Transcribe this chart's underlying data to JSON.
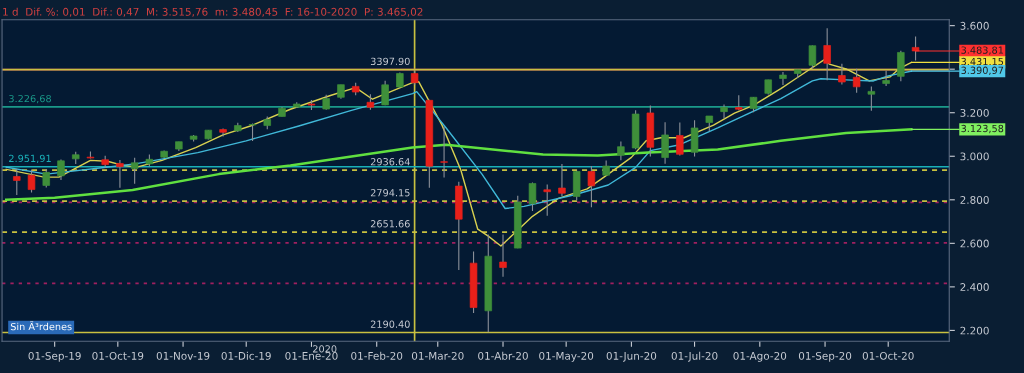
{
  "chart_data": {
    "type": "candlestick",
    "title": "1 d  Dif. %: 0,01  Dif.: 0,47  M: 3.515,76  m: 3.480,45  F: 16-10-2020  P: 3.465,02",
    "x": [
      "2019-08-14",
      "2019-08-21",
      "2019-08-28",
      "2019-09-04",
      "2019-09-11",
      "2019-09-18",
      "2019-09-25",
      "2019-10-02",
      "2019-10-09",
      "2019-10-16",
      "2019-10-23",
      "2019-10-30",
      "2019-11-06",
      "2019-11-13",
      "2019-11-20",
      "2019-11-27",
      "2019-12-04",
      "2019-12-11",
      "2019-12-18",
      "2019-12-25",
      "2020-01-01",
      "2020-01-08",
      "2020-01-15",
      "2020-01-22",
      "2020-01-29",
      "2020-02-05",
      "2020-02-12",
      "2020-02-19",
      "2020-02-26",
      "2020-03-04",
      "2020-03-11",
      "2020-03-18",
      "2020-03-25",
      "2020-04-01",
      "2020-04-08",
      "2020-04-15",
      "2020-04-22",
      "2020-04-29",
      "2020-05-06",
      "2020-05-13",
      "2020-05-20",
      "2020-05-27",
      "2020-06-03",
      "2020-06-10",
      "2020-06-17",
      "2020-06-24",
      "2020-07-01",
      "2020-07-08",
      "2020-07-15",
      "2020-07-22",
      "2020-07-29",
      "2020-08-05",
      "2020-08-12",
      "2020-08-19",
      "2020-08-26",
      "2020-09-02",
      "2020-09-09",
      "2020-09-16",
      "2020-09-23",
      "2020-09-30",
      "2020-10-07",
      "2020-10-14"
    ],
    "ohlc": [
      [
        2907,
        2943,
        2822,
        2889
      ],
      [
        2913,
        2939,
        2834,
        2847
      ],
      [
        2866,
        2940,
        2856,
        2926
      ],
      [
        2910,
        2985,
        2891,
        2979
      ],
      [
        2988,
        3021,
        2964,
        3007
      ],
      [
        2996,
        3022,
        2990,
        2992
      ],
      [
        2984,
        3002,
        2946,
        2962
      ],
      [
        2967,
        2983,
        2855,
        2952
      ],
      [
        2944,
        2993,
        2874,
        2970
      ],
      [
        2965,
        3008,
        2953,
        2986
      ],
      [
        2996,
        3027,
        2992,
        3023
      ],
      [
        3033,
        3067,
        3024,
        3067
      ],
      [
        3078,
        3098,
        3068,
        3093
      ],
      [
        3080,
        3121,
        3077,
        3120
      ],
      [
        3123,
        3127,
        3091,
        3110
      ],
      [
        3117,
        3154,
        3112,
        3141
      ],
      [
        3144,
        3150,
        3070,
        3146
      ],
      [
        3141,
        3183,
        3124,
        3169
      ],
      [
        3183,
        3226,
        3183,
        3221
      ],
      [
        3226,
        3248,
        3223,
        3240
      ],
      [
        3240,
        3259,
        3212,
        3235
      ],
      [
        3217,
        3282,
        3214,
        3265
      ],
      [
        3271,
        3329,
        3264,
        3329
      ],
      [
        3321,
        3338,
        3280,
        3295
      ],
      [
        3248,
        3285,
        3214,
        3225
      ],
      [
        3236,
        3347,
        3234,
        3328
      ],
      [
        3318,
        3385,
        3316,
        3380
      ],
      [
        3380,
        3393,
        3328,
        3338
      ],
      [
        3257,
        3260,
        2855,
        2954
      ],
      [
        2975,
        3137,
        2902,
        2972
      ],
      [
        2863,
        2883,
        2478,
        2711
      ],
      [
        2509,
        2562,
        2280,
        2305
      ],
      [
        2290,
        2641,
        2192,
        2541
      ],
      [
        2514,
        2641,
        2447,
        2489
      ],
      [
        2578,
        2819,
        2577,
        2790
      ],
      [
        2782,
        2879,
        2749,
        2875
      ],
      [
        2846,
        2870,
        2727,
        2837
      ],
      [
        2854,
        2965,
        2816,
        2830
      ],
      [
        2815,
        2933,
        2798,
        2930
      ],
      [
        2930,
        2955,
        2766,
        2864
      ],
      [
        2913,
        2980,
        2913,
        2955
      ],
      [
        3005,
        3068,
        2982,
        3044
      ],
      [
        3038,
        3211,
        3032,
        3194
      ],
      [
        3199,
        3233,
        2999,
        3041
      ],
      [
        2994,
        3156,
        2966,
        3098
      ],
      [
        3095,
        3155,
        3004,
        3009
      ],
      [
        3018,
        3165,
        2999,
        3130
      ],
      [
        3155,
        3185,
        3115,
        3185
      ],
      [
        3205,
        3238,
        3173,
        3225
      ],
      [
        3224,
        3280,
        3211,
        3216
      ],
      [
        3219,
        3272,
        3202,
        3271
      ],
      [
        3289,
        3352,
        3284,
        3351
      ],
      [
        3357,
        3387,
        3327,
        3373
      ],
      [
        3380,
        3399,
        3360,
        3397
      ],
      [
        3418,
        3509,
        3403,
        3508
      ],
      [
        3509,
        3588,
        3349,
        3427
      ],
      [
        3371,
        3425,
        3330,
        3341
      ],
      [
        3363,
        3402,
        3292,
        3319
      ],
      [
        3285,
        3320,
        3209,
        3298
      ],
      [
        3334,
        3393,
        3323,
        3348
      ],
      [
        3367,
        3485,
        3344,
        3477
      ],
      [
        3500,
        3550,
        3440,
        3483.81
      ]
    ],
    "series": [
      {
        "type": "line",
        "color": "#d8d050",
        "x": [
          "2019-08-09",
          "2019-08-27",
          "2019-09-03",
          "2019-09-18",
          "2019-09-26",
          "2019-10-03",
          "2019-10-10",
          "2019-10-22",
          "2019-11-07",
          "2019-11-20",
          "2019-12-03",
          "2019-12-22",
          "2020-01-10",
          "2020-01-22",
          "2020-01-30",
          "2020-02-18",
          "2020-02-21",
          "2020-03-03",
          "2020-03-12",
          "2020-03-20",
          "2020-03-25",
          "2020-03-31",
          "2020-04-15",
          "2020-04-27",
          "2020-05-11",
          "2020-05-21",
          "2020-06-01",
          "2020-06-08",
          "2020-06-15",
          "2020-06-26",
          "2020-07-10",
          "2020-07-20",
          "2020-07-29",
          "2020-08-11",
          "2020-08-18",
          "2020-09-01",
          "2020-09-03",
          "2020-09-11",
          "2020-09-22",
          "2020-10-02",
          "2020-10-06",
          "2020-10-12"
        ],
        "values": [
          2940,
          2904,
          2904,
          2981,
          2977,
          2959,
          2950,
          2981,
          3040,
          3098,
          3139,
          3216,
          3279,
          3315,
          3262,
          3338,
          3342,
          3143,
          2936,
          2665,
          2633,
          2588,
          2724,
          2805,
          2850,
          2918,
          2995,
          3071,
          3085,
          3085,
          3143,
          3198,
          3234,
          3311,
          3356,
          3446,
          3423,
          3401,
          3346,
          3365,
          3401,
          3431.15
        ]
      },
      {
        "type": "line",
        "color": "#40b8d8",
        "x": [
          "2019-08-09",
          "2019-08-28",
          "2019-10-08",
          "2019-11-08",
          "2019-12-01",
          "2019-12-26",
          "2020-01-20",
          "2020-02-18",
          "2020-02-20",
          "2020-03-05",
          "2020-03-22",
          "2020-04-02",
          "2020-04-11",
          "2020-05-05",
          "2020-05-21",
          "2020-06-03",
          "2020-06-10",
          "2020-06-24",
          "2020-07-12",
          "2020-07-25",
          "2020-08-11",
          "2020-08-26",
          "2020-08-30",
          "2020-09-11",
          "2020-09-24",
          "2020-10-01",
          "2020-10-12"
        ],
        "values": [
          2950,
          2918,
          2963,
          3017,
          3071,
          3139,
          3211,
          3288,
          3297,
          3130,
          2918,
          2760,
          2770,
          2823,
          2868,
          2949,
          3026,
          3053,
          3130,
          3189,
          3265,
          3346,
          3356,
          3351,
          3346,
          3369,
          3390.97
        ]
      },
      {
        "type": "line",
        "color": "#60e040",
        "x": [
          "2019-08-09",
          "2019-09-01",
          "2019-10-08",
          "2019-11-18",
          "2019-12-22",
          "2020-02-18",
          "2020-03-05",
          "2020-04-20",
          "2020-05-16",
          "2020-06-09",
          "2020-07-12",
          "2020-08-11",
          "2020-09-11",
          "2020-10-12"
        ],
        "values": [
          2800,
          2809,
          2845,
          2918,
          2958,
          3040,
          3053,
          3008,
          3004,
          3017,
          3031,
          3071,
          3107,
          3123.58
        ]
      }
    ],
    "ref_lines": [
      {
        "axis": "y",
        "value": 3397.9,
        "color": "#c0306a",
        "line_style": "solid"
      },
      {
        "axis": "y",
        "value": 3226.68,
        "label": "3.226,68",
        "color": "#1a9a8a",
        "line_style": "solid"
      },
      {
        "axis": "y",
        "value": 2951.91,
        "label": "2.951,91",
        "color": "#1ab0b8",
        "line_style": "solid"
      },
      {
        "axis": "y",
        "value": 2788,
        "color": "#a02060",
        "line_style": "dotted"
      },
      {
        "axis": "y",
        "value": 2602,
        "color": "#a02060",
        "line_style": "dotted"
      },
      {
        "axis": "y",
        "value": 2416,
        "color": "#a02060",
        "line_style": "dotted"
      },
      {
        "axis": "x",
        "value": "2020-02-19",
        "color": "#c8c040",
        "line_style": "solid"
      },
      {
        "axis": "y",
        "value": 3397.9,
        "label": "3397.90",
        "color": "#c8c040",
        "line_style": "solid"
      },
      {
        "axis": "y",
        "value": 2936.64,
        "label": "2936.64",
        "color": "#c8c040",
        "line_style": "dashed"
      },
      {
        "axis": "y",
        "value": 2794.15,
        "label": "2794.15",
        "color": "#c8c040",
        "line_style": "dashed"
      },
      {
        "axis": "y",
        "value": 2651.66,
        "label": "2651.66",
        "color": "#c8c040",
        "line_style": "dashed"
      },
      {
        "axis": "y",
        "value": 2190.4,
        "label": "2190.40",
        "color": "#c8c040",
        "line_style": "solid"
      }
    ],
    "annotations": [
      {
        "text": "3.483,81",
        "x": "2020-10-14",
        "y": 3483.81
      },
      {
        "text": "3.431,15",
        "x": "2020-10-12",
        "y": 3431.15
      },
      {
        "text": "3.390,97",
        "x": "2020-10-12",
        "y": 3390.97
      },
      {
        "text": "3.123,58",
        "x": "2020-10-12",
        "y": 3123.58
      },
      "2020",
      "Sin Ã³rdenes"
    ],
    "xlim": [
      "2019-08-07",
      "2020-10-30"
    ],
    "xticks": [
      {
        "value": "2019-09-01",
        "label": "01-Sep-19"
      },
      {
        "value": "2019-10-01",
        "label": "01-Oct-19"
      },
      {
        "value": "2019-11-01",
        "label": "01-Nov-19"
      },
      {
        "value": "2019-12-01",
        "label": "01-Dic-19"
      },
      {
        "value": "2020-01-01",
        "label": "01-Ene-20"
      },
      {
        "value": "2020-02-01",
        "label": "01-Feb-20"
      },
      {
        "value": "2020-03-01",
        "label": "01-Mar-20"
      },
      {
        "value": "2020-04-01",
        "label": "01-Abr-20"
      },
      {
        "value": "2020-05-01",
        "label": "01-May-20"
      },
      {
        "value": "2020-06-01",
        "label": "01-Jun-20"
      },
      {
        "value": "2020-07-01",
        "label": "01-Jul-20"
      },
      {
        "value": "2020-08-01",
        "label": "01-Ago-20"
      },
      {
        "value": "2020-09-01",
        "label": "01-Sep-20"
      },
      {
        "value": "2020-10-01",
        "label": "01-Oct-20"
      }
    ],
    "ylim": [
      2150,
      3627
    ],
    "yticks": [
      {
        "value": 2200,
        "label": "2.200"
      },
      {
        "value": 2400,
        "label": "2.400"
      },
      {
        "value": 2600,
        "label": "2.600"
      },
      {
        "value": 2800,
        "label": "2.800"
      },
      {
        "value": 3000,
        "label": "3.000"
      },
      {
        "value": 3200,
        "label": "3.200"
      },
      {
        "value": 3400,
        "label": null
      },
      {
        "value": 3600,
        "label": "3.600"
      }
    ]
  }
}
